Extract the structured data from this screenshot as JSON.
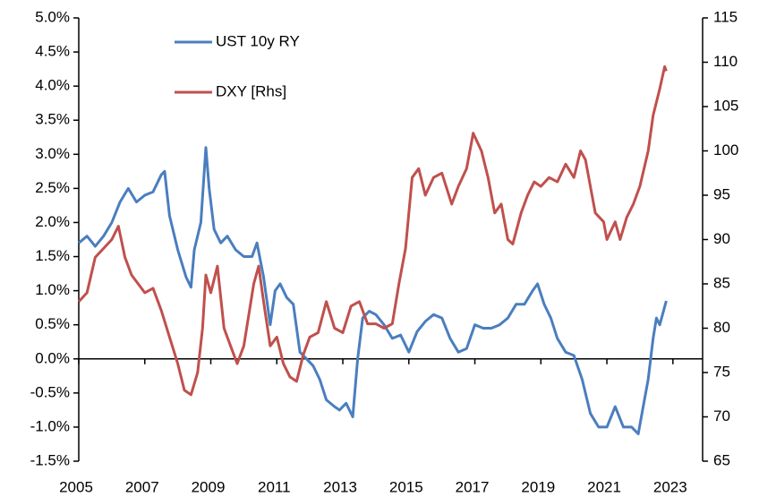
{
  "chart_data": {
    "type": "line",
    "xlim": [
      2005,
      2023.9
    ],
    "xticks": [
      2005,
      2007,
      2009,
      2011,
      2013,
      2015,
      2017,
      2019,
      2021,
      2023
    ],
    "ylim": [
      -1.5,
      5.0
    ],
    "yticks": [
      {
        "value": 5.0,
        "label": "5.0%"
      },
      {
        "value": 4.5,
        "label": "4.5%"
      },
      {
        "value": 4.0,
        "label": "4.0%"
      },
      {
        "value": 3.5,
        "label": "3.5%"
      },
      {
        "value": 3.0,
        "label": "3.0%"
      },
      {
        "value": 2.5,
        "label": "2.5%"
      },
      {
        "value": 2.0,
        "label": "2.0%"
      },
      {
        "value": 1.5,
        "label": "1.5%"
      },
      {
        "value": 1.0,
        "label": "1.0%"
      },
      {
        "value": 0.5,
        "label": "0.5%"
      },
      {
        "value": 0.0,
        "label": "0.0%"
      },
      {
        "value": -0.5,
        "label": "-0.5%"
      },
      {
        "value": -1.0,
        "label": "-1.0%"
      },
      {
        "value": -1.5,
        "label": "-1.5%"
      }
    ],
    "y2lim": [
      65,
      115
    ],
    "y2ticks": [
      115,
      110,
      105,
      100,
      95,
      90,
      85,
      80,
      75,
      70,
      65
    ],
    "legend": "upper left",
    "series": [
      {
        "name": "UST 10y RY",
        "color": "#4a7ebf",
        "x": [
          2005.0,
          2005.25,
          2005.5,
          2005.75,
          2006.0,
          2006.25,
          2006.5,
          2006.75,
          2007.0,
          2007.25,
          2007.5,
          2007.6,
          2007.75,
          2008.0,
          2008.25,
          2008.4,
          2008.5,
          2008.7,
          2008.85,
          2008.95,
          2009.1,
          2009.3,
          2009.5,
          2009.75,
          2010.0,
          2010.25,
          2010.4,
          2010.6,
          2010.8,
          2010.95,
          2011.1,
          2011.3,
          2011.5,
          2011.7,
          2011.9,
          2012.1,
          2012.3,
          2012.5,
          2012.75,
          2012.9,
          2013.1,
          2013.3,
          2013.45,
          2013.6,
          2013.8,
          2014.0,
          2014.25,
          2014.5,
          2014.75,
          2015.0,
          2015.25,
          2015.5,
          2015.75,
          2016.0,
          2016.25,
          2016.5,
          2016.75,
          2017.0,
          2017.25,
          2017.5,
          2017.75,
          2018.0,
          2018.25,
          2018.5,
          2018.75,
          2018.9,
          2019.1,
          2019.3,
          2019.5,
          2019.75,
          2020.0,
          2020.25,
          2020.5,
          2020.75,
          2021.0,
          2021.25,
          2021.5,
          2021.75,
          2021.95,
          2022.1,
          2022.25,
          2022.4,
          2022.5,
          2022.6,
          2022.8
        ],
        "values": [
          1.7,
          1.8,
          1.65,
          1.8,
          2.0,
          2.3,
          2.5,
          2.3,
          2.4,
          2.45,
          2.7,
          2.75,
          2.1,
          1.6,
          1.2,
          1.05,
          1.6,
          2.0,
          3.1,
          2.5,
          1.9,
          1.7,
          1.8,
          1.6,
          1.5,
          1.5,
          1.7,
          1.2,
          0.5,
          1.0,
          1.1,
          0.9,
          0.8,
          0.1,
          0.0,
          -0.1,
          -0.3,
          -0.6,
          -0.7,
          -0.75,
          -0.65,
          -0.85,
          0.0,
          0.6,
          0.7,
          0.65,
          0.5,
          0.3,
          0.35,
          0.1,
          0.4,
          0.55,
          0.65,
          0.6,
          0.3,
          0.1,
          0.15,
          0.5,
          0.45,
          0.45,
          0.5,
          0.6,
          0.8,
          0.8,
          1.0,
          1.1,
          0.8,
          0.6,
          0.3,
          0.1,
          0.05,
          -0.3,
          -0.8,
          -1.0,
          -1.0,
          -0.7,
          -1.0,
          -1.0,
          -1.1,
          -0.7,
          -0.3,
          0.3,
          0.6,
          0.5,
          0.85
        ]
      },
      {
        "name": "DXY [Rhs]",
        "color": "#c0504d",
        "axis": "y2",
        "x": [
          2005.0,
          2005.25,
          2005.5,
          2005.75,
          2006.0,
          2006.2,
          2006.4,
          2006.6,
          2006.8,
          2007.0,
          2007.25,
          2007.5,
          2007.75,
          2008.0,
          2008.2,
          2008.4,
          2008.6,
          2008.75,
          2008.85,
          2009.0,
          2009.2,
          2009.4,
          2009.6,
          2009.8,
          2010.0,
          2010.3,
          2010.45,
          2010.6,
          2010.8,
          2011.0,
          2011.2,
          2011.4,
          2011.6,
          2011.8,
          2012.0,
          2012.25,
          2012.5,
          2012.75,
          2013.0,
          2013.25,
          2013.5,
          2013.75,
          2014.0,
          2014.25,
          2014.5,
          2014.7,
          2014.9,
          2015.1,
          2015.3,
          2015.5,
          2015.75,
          2016.0,
          2016.3,
          2016.5,
          2016.75,
          2016.95,
          2017.2,
          2017.4,
          2017.6,
          2017.8,
          2018.0,
          2018.15,
          2018.4,
          2018.6,
          2018.8,
          2019.0,
          2019.25,
          2019.5,
          2019.75,
          2020.0,
          2020.2,
          2020.35,
          2020.5,
          2020.65,
          2020.9,
          2021.0,
          2021.25,
          2021.4,
          2021.6,
          2021.8,
          2022.0,
          2022.25,
          2022.4,
          2022.6,
          2022.75,
          2022.8
        ],
        "values": [
          83,
          84,
          88,
          89,
          90,
          91.5,
          88,
          86,
          85,
          84,
          84.5,
          82,
          79,
          76,
          73,
          72.5,
          75,
          80,
          86,
          84,
          87,
          80,
          78,
          76,
          78,
          85,
          87,
          83,
          78,
          79,
          76,
          74.5,
          74,
          77,
          79,
          79.5,
          83,
          80,
          79.5,
          82.5,
          83,
          80.5,
          80.5,
          80,
          80.5,
          85,
          89,
          97,
          98,
          95,
          97,
          97.5,
          94,
          96,
          98,
          102,
          100,
          97,
          93,
          94,
          90,
          89.5,
          93,
          95,
          96.5,
          96,
          97,
          96.5,
          98.5,
          97,
          100,
          99,
          96,
          93,
          92,
          90,
          92,
          90,
          92.5,
          94,
          96,
          100,
          104,
          107,
          109.5,
          109
        ]
      }
    ]
  }
}
